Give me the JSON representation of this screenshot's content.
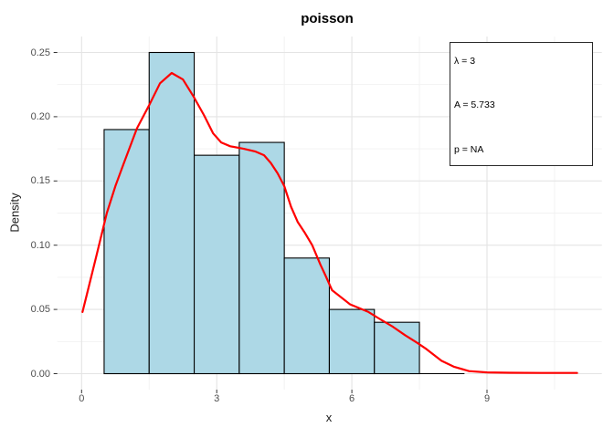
{
  "title": "poisson",
  "chart_data": {
    "type": "histogram_with_density",
    "title": "poisson",
    "xlabel": "x",
    "ylabel": "Density",
    "x_axis": {
      "major_ticks": [
        0,
        3,
        6,
        9
      ],
      "minor_ticks": [
        1.5,
        4.5,
        7.5,
        10.5
      ],
      "tick_labels": [
        "0",
        "3",
        "6",
        "9"
      ],
      "range": [
        -0.55,
        11.55
      ]
    },
    "y_axis": {
      "major_ticks": [
        0,
        0.05,
        0.1,
        0.15,
        0.2,
        0.25
      ],
      "minor_ticks": [
        0.025,
        0.075,
        0.125,
        0.175,
        0.225
      ],
      "tick_labels": [
        "0.00",
        "0.05",
        "0.10",
        "0.15",
        "0.20",
        "0.25"
      ],
      "range": [
        -0.0125,
        0.2625
      ]
    },
    "grid": {
      "major_color": "#E4E4E4",
      "minor_color": "#F1F1F1",
      "on": true
    },
    "histogram": {
      "bin_edges": [
        0.5,
        1.5,
        2.5,
        3.5,
        4.5,
        5.5,
        6.5,
        7.5,
        8.5
      ],
      "densities": [
        0.19,
        0.25,
        0.17,
        0.18,
        0.09,
        0.05,
        0.04,
        0
      ],
      "fill": "#ADD8E6",
      "stroke": "#000000"
    },
    "density_curve": {
      "color": "#FF0000",
      "points": [
        [
          0.02,
          0.048
        ],
        [
          0.12,
          0.062
        ],
        [
          0.33,
          0.092
        ],
        [
          0.56,
          0.125
        ],
        [
          0.75,
          0.146
        ],
        [
          0.93,
          0.163
        ],
        [
          1.23,
          0.191
        ],
        [
          1.5,
          0.209
        ],
        [
          1.74,
          0.226
        ],
        [
          2.0,
          0.234
        ],
        [
          2.25,
          0.229
        ],
        [
          2.48,
          0.216
        ],
        [
          2.72,
          0.201
        ],
        [
          2.92,
          0.187
        ],
        [
          3.1,
          0.18
        ],
        [
          3.3,
          0.177
        ],
        [
          3.6,
          0.175
        ],
        [
          3.85,
          0.173
        ],
        [
          4.05,
          0.17
        ],
        [
          4.2,
          0.164
        ],
        [
          4.35,
          0.156
        ],
        [
          4.5,
          0.146
        ],
        [
          4.65,
          0.13
        ],
        [
          4.8,
          0.118
        ],
        [
          4.95,
          0.11
        ],
        [
          5.12,
          0.1
        ],
        [
          5.3,
          0.085
        ],
        [
          5.42,
          0.076
        ],
        [
          5.56,
          0.065
        ],
        [
          5.96,
          0.054
        ],
        [
          6.37,
          0.048
        ],
        [
          6.6,
          0.043
        ],
        [
          6.91,
          0.0365
        ],
        [
          7.18,
          0.03
        ],
        [
          7.45,
          0.024
        ],
        [
          7.66,
          0.019
        ],
        [
          7.99,
          0.01
        ],
        [
          8.26,
          0.0055
        ],
        [
          8.6,
          0.002
        ],
        [
          9.0,
          0.001
        ],
        [
          9.5,
          0.0007
        ],
        [
          10.2,
          0.0006
        ],
        [
          11.0,
          0.0006
        ]
      ]
    },
    "annotation_box": {
      "lines": [
        "λ = 3",
        "A = 5.733",
        "p = NA"
      ]
    }
  }
}
